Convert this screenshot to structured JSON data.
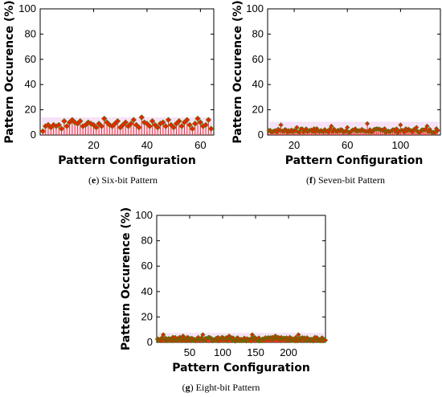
{
  "chart_data": [
    {
      "type": "scatter",
      "caption_letter": "e",
      "caption_text": "Six-bit Pattern",
      "xlabel": "Pattern Configuration",
      "ylabel": "Pattern Occurence (%)",
      "xlim": [
        0,
        65
      ],
      "ylim": [
        0,
        100
      ],
      "xticks": [
        20,
        40,
        60
      ],
      "yticks": [
        0,
        20,
        40,
        60,
        80,
        100
      ],
      "x": [
        1,
        2,
        3,
        4,
        5,
        6,
        7,
        8,
        9,
        10,
        11,
        12,
        13,
        14,
        15,
        16,
        17,
        18,
        19,
        20,
        21,
        22,
        23,
        24,
        25,
        26,
        27,
        28,
        29,
        30,
        31,
        32,
        33,
        34,
        35,
        36,
        37,
        38,
        39,
        40,
        41,
        42,
        43,
        44,
        45,
        46,
        47,
        48,
        49,
        50,
        51,
        52,
        53,
        54,
        55,
        56,
        57,
        58,
        59,
        60,
        61,
        62,
        63,
        64
      ],
      "y": [
        3,
        7,
        8,
        6,
        8,
        7,
        8,
        5,
        11,
        7,
        10,
        12,
        10,
        9,
        11,
        7,
        8,
        10,
        9,
        8,
        6,
        9,
        7,
        13,
        10,
        8,
        7,
        9,
        11,
        6,
        8,
        10,
        7,
        9,
        12,
        8,
        6,
        14,
        10,
        9,
        7,
        11,
        8,
        6,
        9,
        10,
        7,
        12,
        8,
        6,
        9,
        11,
        7,
        10,
        12,
        8,
        5,
        9,
        13,
        10,
        7,
        8,
        12,
        5
      ]
    },
    {
      "type": "scatter",
      "caption_letter": "f",
      "caption_text": "Seven-bit Pattern",
      "xlabel": "Pattern Configuration",
      "ylabel": "Pattern Occurence (%)",
      "xlim": [
        0,
        130
      ],
      "ylim": [
        0,
        100
      ],
      "xticks": [
        20,
        60,
        100
      ],
      "yticks": [
        0,
        20,
        40,
        60,
        80,
        100
      ],
      "point_count": 128,
      "base_level": 3,
      "spikes": [
        [
          10,
          8
        ],
        [
          22,
          6
        ],
        [
          35,
          5
        ],
        [
          48,
          7
        ],
        [
          60,
          6
        ],
        [
          75,
          9
        ],
        [
          88,
          5
        ],
        [
          100,
          8
        ],
        [
          112,
          6
        ],
        [
          120,
          7
        ],
        [
          127,
          5
        ]
      ]
    },
    {
      "type": "scatter",
      "caption_letter": "g",
      "caption_text": "Eight-bit Pattern",
      "xlabel": "Pattern Configuration",
      "ylabel": "Pattern Occurence (%)",
      "xlim": [
        0,
        256
      ],
      "ylim": [
        0,
        100
      ],
      "xticks": [
        50,
        100,
        150,
        200
      ],
      "yticks": [
        0,
        20,
        40,
        60,
        80,
        100
      ],
      "point_count": 256,
      "base_level": 2,
      "spikes": [
        [
          10,
          6
        ],
        [
          40,
          5
        ],
        [
          70,
          6
        ],
        [
          110,
          5
        ],
        [
          145,
          6
        ],
        [
          180,
          5
        ],
        [
          215,
          6
        ],
        [
          240,
          4
        ]
      ]
    }
  ],
  "colors": {
    "marker_fill": "#ff1a00",
    "marker_edge": "#4a7a00",
    "stem": "#ff2a2a",
    "band": "#e8a8e8"
  }
}
